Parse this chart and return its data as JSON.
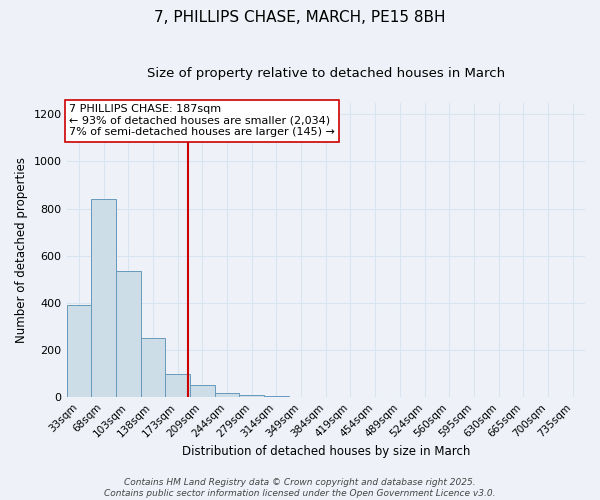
{
  "title": "7, PHILLIPS CHASE, MARCH, PE15 8BH",
  "subtitle": "Size of property relative to detached houses in March",
  "xlabel": "Distribution of detached houses by size in March",
  "ylabel": "Number of detached properties",
  "bar_labels": [
    "33sqm",
    "68sqm",
    "103sqm",
    "138sqm",
    "173sqm",
    "209sqm",
    "244sqm",
    "279sqm",
    "314sqm",
    "349sqm",
    "384sqm",
    "419sqm",
    "454sqm",
    "489sqm",
    "524sqm",
    "560sqm",
    "595sqm",
    "630sqm",
    "665sqm",
    "700sqm",
    "735sqm"
  ],
  "bar_values": [
    390,
    840,
    535,
    250,
    100,
    50,
    20,
    10,
    5,
    3,
    1,
    0,
    0,
    0,
    0,
    0,
    0,
    0,
    0,
    0,
    0
  ],
  "bar_color": "#ccdde8",
  "bar_edge_color": "#6699bb",
  "background_color": "#eef2f8",
  "grid_color": "#d8e4f0",
  "vline_color": "#cc0000",
  "vline_pos": 4.4,
  "annotation_title": "7 PHILLIPS CHASE: 187sqm",
  "annotation_line1": "← 93% of detached houses are smaller (2,034)",
  "annotation_line2": "7% of semi-detached houses are larger (145) →",
  "annotation_box_facecolor": "#ffffff",
  "annotation_box_edgecolor": "#cc0000",
  "ylim": [
    0,
    1250
  ],
  "yticks": [
    0,
    200,
    400,
    600,
    800,
    1000,
    1200
  ],
  "footer_line1": "Contains HM Land Registry data © Crown copyright and database right 2025.",
  "footer_line2": "Contains public sector information licensed under the Open Government Licence v3.0.",
  "title_fontsize": 11,
  "subtitle_fontsize": 9.5,
  "axis_label_fontsize": 8.5,
  "tick_fontsize": 7.5,
  "annotation_fontsize": 8,
  "footer_fontsize": 6.5
}
